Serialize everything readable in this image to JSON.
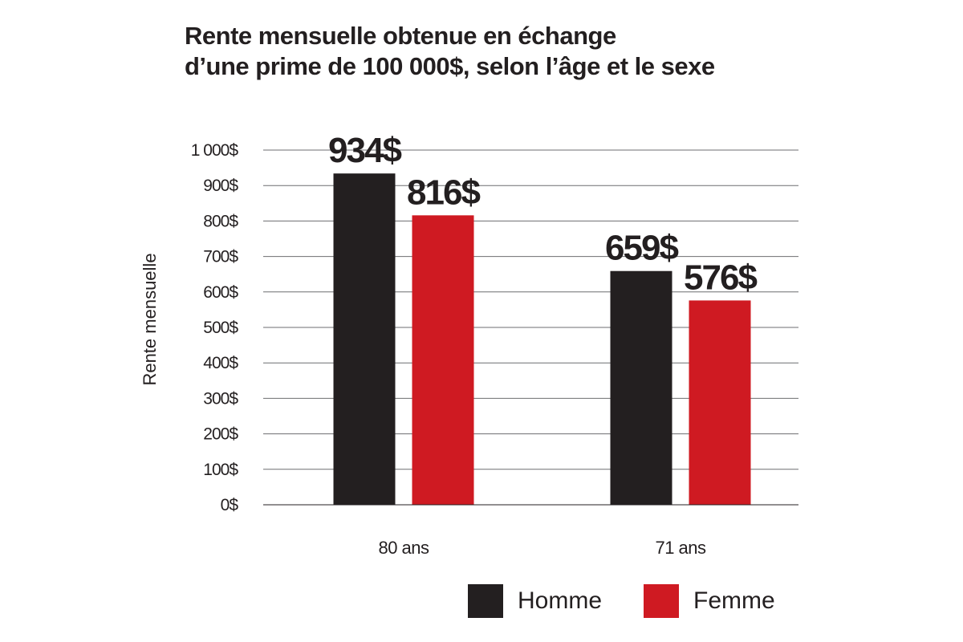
{
  "title": {
    "line1": "Rente mensuelle obtenue en échange",
    "line2": "d’une prime de 100 000$, selon l’âge et le sexe"
  },
  "chart_data": {
    "type": "bar",
    "title": "Rente mensuelle obtenue en échange d’une prime de 100 000$, selon l’âge et le sexe",
    "xlabel": "",
    "ylabel": "Rente mensuelle",
    "ylim": [
      0,
      1000
    ],
    "yticks": [
      "0$",
      "100$",
      "200$",
      "300$",
      "400$",
      "500$",
      "600$",
      "700$",
      "800$",
      "900$",
      "1 000$"
    ],
    "categories": [
      "80 ans",
      "71 ans"
    ],
    "series": [
      {
        "name": "Homme",
        "values": [
          934,
          659
        ],
        "labels": [
          "934$",
          "659$"
        ],
        "color": "#231f20"
      },
      {
        "name": "Femme",
        "values": [
          816,
          576
        ],
        "labels": [
          "816$",
          "576$"
        ],
        "color": "#cf1a22"
      }
    ],
    "grid": true,
    "legend": "bottom-right"
  }
}
